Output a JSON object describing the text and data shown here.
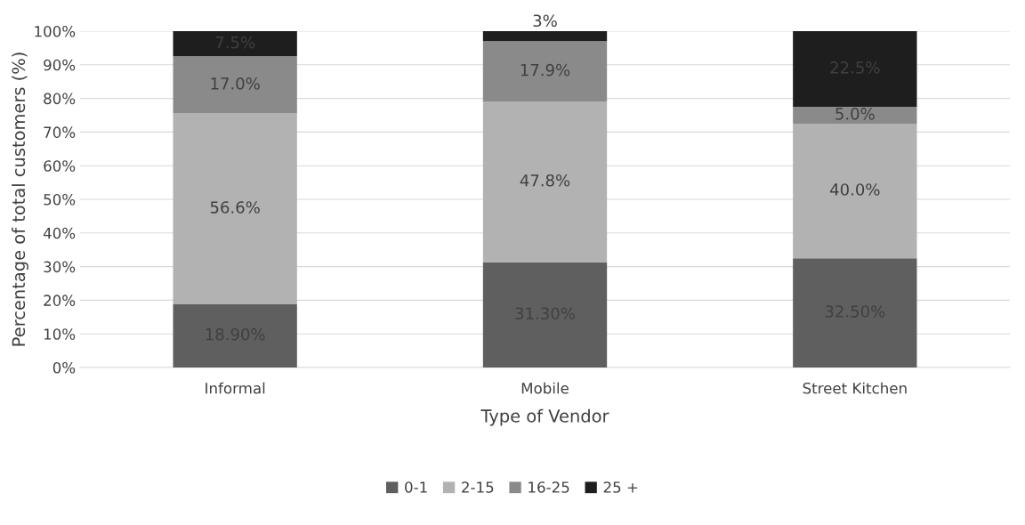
{
  "chart_data": {
    "type": "bar",
    "stacked": true,
    "xlabel": "Type of Vendor",
    "ylabel": "Percentage of total customers (%)",
    "categories": [
      "Informal",
      "Mobile",
      "Street Kitchen"
    ],
    "series": [
      {
        "name": "0-1",
        "color": "#5f5f5f",
        "values": [
          18.9,
          31.3,
          32.5
        ],
        "value_labels": [
          "18.90%",
          "31.30%",
          "32.50%"
        ]
      },
      {
        "name": "2-15",
        "color": "#b2b2b2",
        "values": [
          56.6,
          47.8,
          40.0
        ],
        "value_labels": [
          "56.6%",
          "47.8%",
          "40.0%"
        ]
      },
      {
        "name": "16-25",
        "color": "#8a8a8a",
        "values": [
          17.0,
          17.9,
          5.0
        ],
        "value_labels": [
          "17.0%",
          "17.9%",
          "5.0%"
        ]
      },
      {
        "name": "25 +",
        "color": "#1e1e1e",
        "values": [
          7.5,
          3,
          22.5
        ],
        "value_labels": [
          "7.5%",
          "3%",
          "22.5%"
        ]
      }
    ],
    "ylim": [
      0,
      100
    ],
    "yticks": [
      {
        "value": 0,
        "label": "0%"
      },
      {
        "value": 10,
        "label": "10%"
      },
      {
        "value": 20,
        "label": "20%"
      },
      {
        "value": 30,
        "label": "30%"
      },
      {
        "value": 40,
        "label": "40%"
      },
      {
        "value": 50,
        "label": "50%"
      },
      {
        "value": 60,
        "label": "60%"
      },
      {
        "value": 70,
        "label": "70%"
      },
      {
        "value": 80,
        "label": "80%"
      },
      {
        "value": 90,
        "label": "90%"
      },
      {
        "value": 100,
        "label": "100%"
      }
    ],
    "grid": "y",
    "legend": "bottom"
  }
}
